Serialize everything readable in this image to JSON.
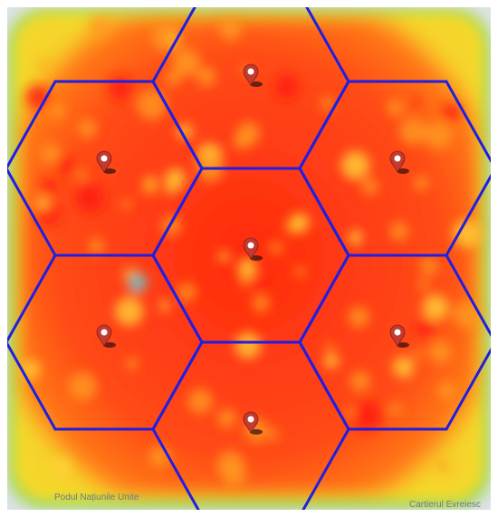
{
  "map": {
    "labels": {
      "bridge": "Podul Națiunile Unite",
      "district": "Cartierul Evreiesc"
    }
  }
}
